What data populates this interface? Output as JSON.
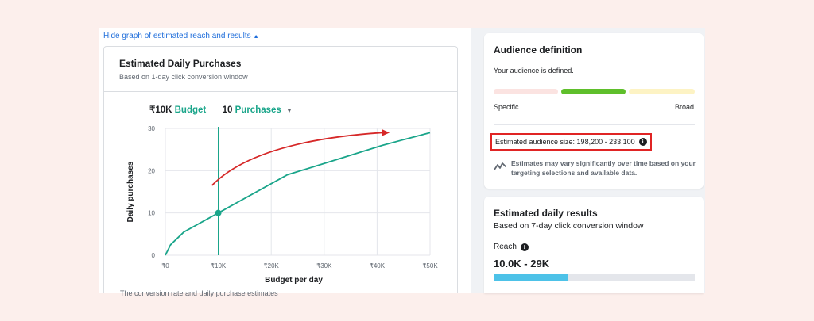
{
  "graph_toggle": {
    "label": "Hide graph of estimated reach and results",
    "caret": "▲"
  },
  "graph": {
    "title": "Estimated Daily Purchases",
    "subtitle": "Based on 1-day click conversion window",
    "budget_value": "₹10K",
    "budget_label": "Budget",
    "purchases_value": "10",
    "purchases_label": "Purchases",
    "dropdown_caret": "▼",
    "footnote": "The conversion rate and daily purchase estimates"
  },
  "chart_data": {
    "type": "line",
    "xlabel": "Budget per day",
    "ylabel": "Daily purchases",
    "x_ticks": [
      "₹0",
      "₹10K",
      "₹20K",
      "₹30K",
      "₹40K",
      "₹50K"
    ],
    "y_ticks": [
      "0",
      "10",
      "20",
      "30"
    ],
    "xlim": [
      0,
      50000
    ],
    "ylim": [
      0,
      30
    ],
    "series": [
      {
        "x": [
          0,
          1000,
          3500,
          10000,
          23000,
          30000,
          41000,
          50000
        ],
        "y": [
          0,
          2.5,
          5.5,
          10,
          19,
          21.7,
          26,
          29
        ]
      }
    ],
    "selected_point": {
      "x": 10000,
      "y": 10
    },
    "colors": {
      "line": "#1aa58a",
      "arrow": "#d62828",
      "grid": "#e4e6eb"
    },
    "grid": true
  },
  "audience": {
    "title": "Audience definition",
    "status": "Your audience is defined.",
    "specific_label": "Specific",
    "broad_label": "Broad",
    "size_text": "Estimated audience size: 198,200 - 233,100",
    "info_icon": "i",
    "note": "Estimates may vary significantly over time based on your targeting selections and available data."
  },
  "results": {
    "title": "Estimated daily results",
    "subtitle": "Based on 7-day click conversion window",
    "reach_label": "Reach",
    "reach_info": "i",
    "reach_value": "10.0K - 29K",
    "reach_fraction": 0.37
  }
}
